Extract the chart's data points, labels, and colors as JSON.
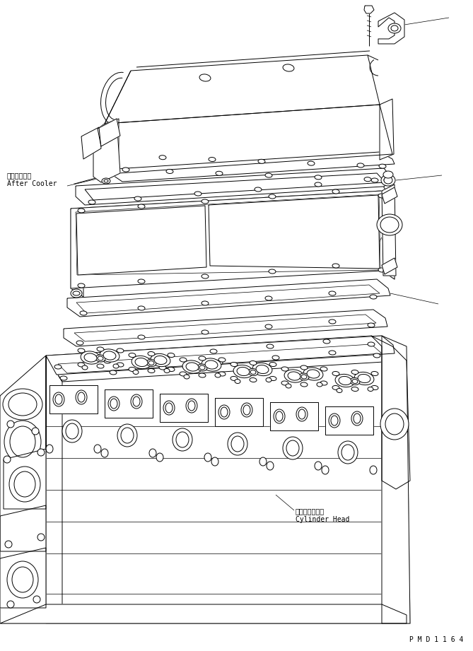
{
  "background_color": "#ffffff",
  "line_color": "#000000",
  "line_width": 0.7,
  "label_after_cooler_jp": "アフタクーラ",
  "label_after_cooler_en": "After Cooler",
  "label_cylinder_head_jp": "シリンダヘッド",
  "label_cylinder_head_en": "Cylinder Head",
  "watermark": "P M D 1 1 6 4",
  "font_size_label": 7.0,
  "font_size_watermark": 7.0
}
